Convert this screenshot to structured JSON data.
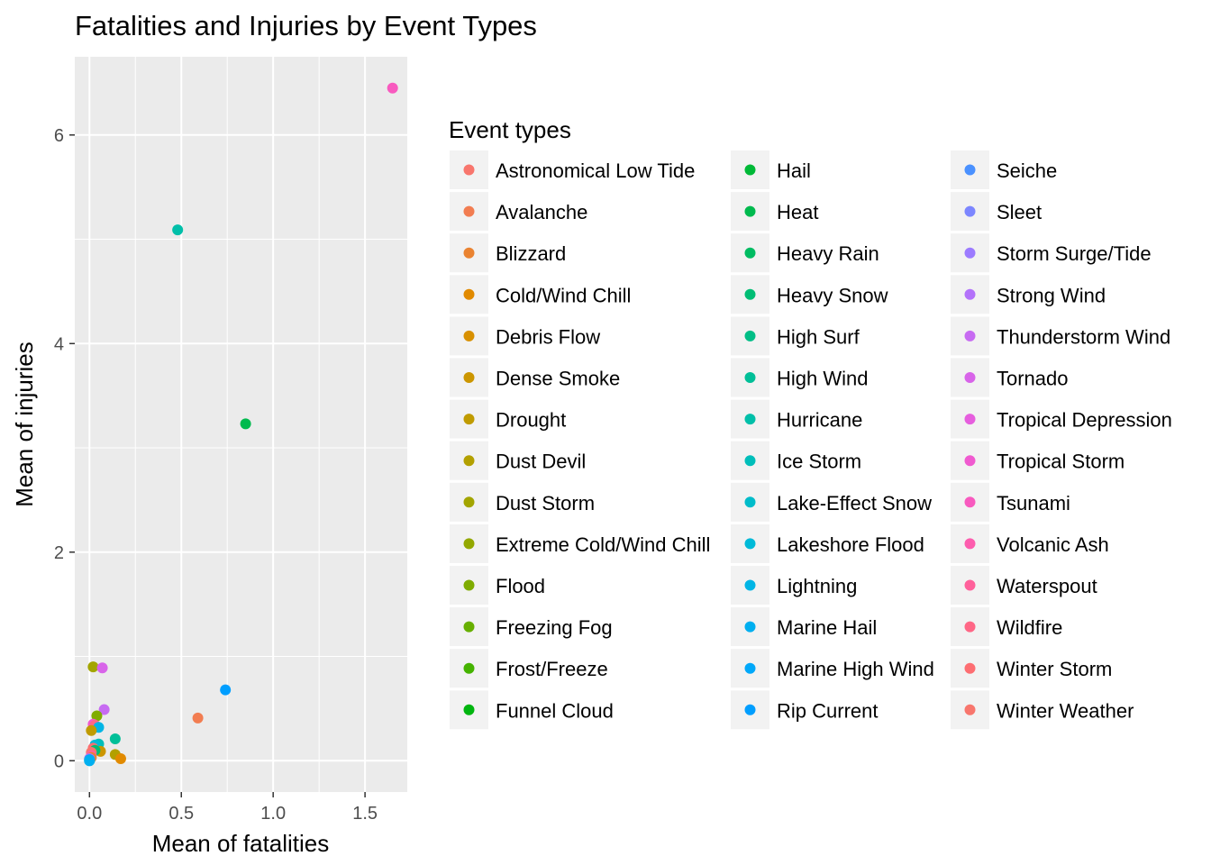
{
  "chart_data": {
    "type": "scatter",
    "title": "Fatalities and Injuries by Event Types",
    "xlabel": "Mean of fatalities",
    "ylabel": "Mean of injuries",
    "xlim": [
      -0.08,
      1.73
    ],
    "ylim": [
      -0.3,
      6.75
    ],
    "x_ticks": [
      0.0,
      0.5,
      1.0,
      1.5
    ],
    "x_tick_labels": [
      "0.0",
      "0.5",
      "1.0",
      "1.5"
    ],
    "y_ticks": [
      0,
      2,
      4,
      6
    ],
    "y_tick_labels": [
      "0",
      "2",
      "4",
      "6"
    ],
    "grid": true,
    "legend": {
      "title": "Event types",
      "placement": "right",
      "columns": 3,
      "items": [
        {
          "name": "Astronomical Low Tide",
          "color": "#F8766D"
        },
        {
          "name": "Avalanche",
          "color": "#F27D51"
        },
        {
          "name": "Blizzard",
          "color": "#EA8331"
        },
        {
          "name": "Cold/Wind Chill",
          "color": "#E18A00"
        },
        {
          "name": "Debris Flow",
          "color": "#D89000"
        },
        {
          "name": "Dense Smoke",
          "color": "#CC9600"
        },
        {
          "name": "Drought",
          "color": "#C09B00"
        },
        {
          "name": "Dust Devil",
          "color": "#B3A000"
        },
        {
          "name": "Dust Storm",
          "color": "#A3A500"
        },
        {
          "name": "Extreme Cold/Wind Chill",
          "color": "#93A800"
        },
        {
          "name": "Flood",
          "color": "#7FAC00"
        },
        {
          "name": "Freezing Fog",
          "color": "#67AF00"
        },
        {
          "name": "Frost/Freeze",
          "color": "#45B300"
        },
        {
          "name": "Funnel Cloud",
          "color": "#00B50F"
        },
        {
          "name": "Hail",
          "color": "#00B937"
        },
        {
          "name": "Heat",
          "color": "#00BA4E"
        },
        {
          "name": "Heavy Rain",
          "color": "#00BC62"
        },
        {
          "name": "Heavy Snow",
          "color": "#00BD74"
        },
        {
          "name": "High Surf",
          "color": "#00BE86"
        },
        {
          "name": "High Wind",
          "color": "#00BF98"
        },
        {
          "name": "Hurricane",
          "color": "#00BFA9"
        },
        {
          "name": "Ice Storm",
          "color": "#00BEBA"
        },
        {
          "name": "Lake-Effect Snow",
          "color": "#00BCCA"
        },
        {
          "name": "Lakeshore Flood",
          "color": "#00BAD8"
        },
        {
          "name": "Lightning",
          "color": "#00B5E5"
        },
        {
          "name": "Marine Hail",
          "color": "#00AFF0"
        },
        {
          "name": "Marine High Wind",
          "color": "#00A8FA"
        },
        {
          "name": "Rip Current",
          "color": "#009EFF"
        },
        {
          "name": "Seiche",
          "color": "#4A91FF"
        },
        {
          "name": "Sleet",
          "color": "#7C86FF"
        },
        {
          "name": "Storm Surge/Tide",
          "color": "#9C7BFF"
        },
        {
          "name": "Strong Wind",
          "color": "#B372FA"
        },
        {
          "name": "Thunderstorm Wind",
          "color": "#C76BF2"
        },
        {
          "name": "Tornado",
          "color": "#D864E9"
        },
        {
          "name": "Tropical Depression",
          "color": "#E65EDE"
        },
        {
          "name": "Tropical Storm",
          "color": "#F05AD0"
        },
        {
          "name": "Tsunami",
          "color": "#F85ABF"
        },
        {
          "name": "Volcanic Ash",
          "color": "#FD5DAE"
        },
        {
          "name": "Waterspout",
          "color": "#FF619B"
        },
        {
          "name": "Wildfire",
          "color": "#FF6786"
        },
        {
          "name": "Winter Storm",
          "color": "#FD6E72"
        },
        {
          "name": "Winter Weather",
          "color": "#F8766D"
        }
      ]
    },
    "points": [
      {
        "series": "Tsunami",
        "x": 1.65,
        "y": 6.45
      },
      {
        "series": "Hurricane",
        "x": 0.48,
        "y": 5.09
      },
      {
        "series": "Heat",
        "x": 0.85,
        "y": 3.23
      },
      {
        "series": "Rip Current",
        "x": 0.74,
        "y": 0.68
      },
      {
        "series": "Avalanche",
        "x": 0.59,
        "y": 0.41
      },
      {
        "series": "Dust Storm",
        "x": 0.02,
        "y": 0.9
      },
      {
        "series": "Tornado",
        "x": 0.07,
        "y": 0.89
      },
      {
        "series": "Thunderstorm Wind",
        "x": 0.08,
        "y": 0.49
      },
      {
        "series": "Flood",
        "x": 0.04,
        "y": 0.43
      },
      {
        "series": "Tropical Storm",
        "x": 0.02,
        "y": 0.35
      },
      {
        "series": "Wildfire",
        "x": 0.03,
        "y": 0.34
      },
      {
        "series": "Lightning",
        "x": 0.05,
        "y": 0.32
      },
      {
        "series": "Drought",
        "x": 0.01,
        "y": 0.29
      },
      {
        "series": "High Wind",
        "x": 0.14,
        "y": 0.21
      },
      {
        "series": "Ice Storm",
        "x": 0.05,
        "y": 0.16
      },
      {
        "series": "Lakeshore Flood",
        "x": 0.03,
        "y": 0.15
      },
      {
        "series": "Winter Storm",
        "x": 0.02,
        "y": 0.12
      },
      {
        "series": "Dense Smoke",
        "x": 0.06,
        "y": 0.09
      },
      {
        "series": "Heavy Snow",
        "x": 0.03,
        "y": 0.1
      },
      {
        "series": "Dust Devil",
        "x": 0.14,
        "y": 0.06
      },
      {
        "series": "Cold/Wind Chill",
        "x": 0.17,
        "y": 0.02
      },
      {
        "series": "Winter Weather",
        "x": 0.01,
        "y": 0.08
      },
      {
        "series": "Waterspout",
        "x": 0.01,
        "y": 0.05
      },
      {
        "series": "Blizzard",
        "x": 0.01,
        "y": 0.03
      },
      {
        "series": "Strong Wind",
        "x": 0.0,
        "y": 0.02
      },
      {
        "series": "Marine High Wind",
        "x": 0.0,
        "y": 0.01
      },
      {
        "series": "Lake-Effect Snow",
        "x": 0.0,
        "y": 0.0
      },
      {
        "series": "Marine Hail",
        "x": 0.0,
        "y": 0.0
      }
    ]
  }
}
